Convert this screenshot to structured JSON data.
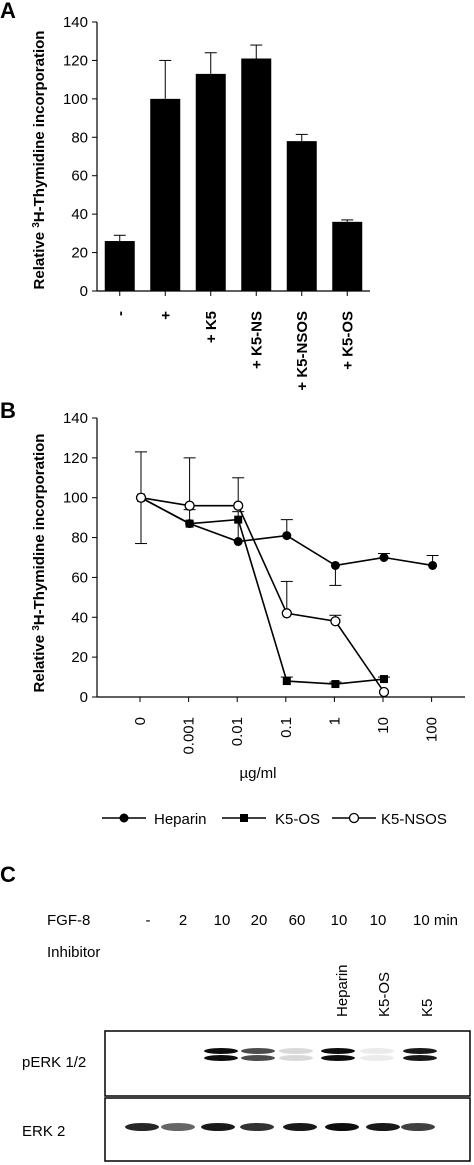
{
  "panels": {
    "a": "A",
    "b": "B",
    "c": "C"
  },
  "chart_data": [
    {
      "type": "bar",
      "ylabel_pre": "Relative ",
      "ylabel_sup": "3",
      "ylabel_post": "H-Thymidine incorporation",
      "categories": [
        "-",
        "+",
        "+ K5",
        "+ K5-NS",
        "+ K5-NSOS",
        "+ K5-OS"
      ],
      "values": [
        26,
        100,
        113,
        121,
        78,
        36
      ],
      "errors": [
        3,
        20,
        11,
        7,
        3.5,
        1
      ],
      "ylim": [
        0,
        140
      ],
      "yticks": [
        0,
        20,
        40,
        60,
        80,
        100,
        120,
        140
      ],
      "bar_color": "#000000"
    },
    {
      "type": "line",
      "ylabel_pre": "Relative ",
      "ylabel_sup": "3",
      "ylabel_post": "H-Thymidine incorporation",
      "xlabel": "µg/ml",
      "categories": [
        "0",
        "0.001",
        "0.01",
        "0.1",
        "1",
        "10",
        "100"
      ],
      "ylim": [
        0,
        140
      ],
      "yticks": [
        0,
        20,
        40,
        60,
        80,
        100,
        120,
        140
      ],
      "series": [
        {
          "name": "Heparin",
          "marker": "filled-circle",
          "values": [
            100,
            87,
            78,
            81,
            66,
            70,
            66
          ],
          "errors": [
            23,
            7,
            15,
            8,
            10,
            2,
            5
          ]
        },
        {
          "name": "K5-OS",
          "marker": "filled-square",
          "values": [
            100,
            87,
            89,
            8,
            6.5,
            9,
            null
          ],
          "errors": [
            0,
            0,
            0,
            2,
            1,
            1,
            null
          ]
        },
        {
          "name": "K5-NSOS",
          "marker": "open-circle",
          "values": [
            100,
            96,
            96,
            42,
            38,
            2.5,
            null
          ],
          "errors": [
            0,
            24,
            14,
            16,
            3,
            0,
            null
          ]
        }
      ]
    }
  ],
  "blot": {
    "stimulus_label": "FGF-8",
    "stimulus_values": [
      "-",
      "2",
      "10",
      "20",
      "60",
      "10",
      "10",
      "10 min"
    ],
    "inhibitor_label": "Inhibitor",
    "inhibitors": [
      "Heparin",
      "K5-OS",
      "K5"
    ],
    "rows": [
      {
        "label": "pERK 1/2"
      },
      {
        "label": "ERK 2"
      }
    ]
  }
}
